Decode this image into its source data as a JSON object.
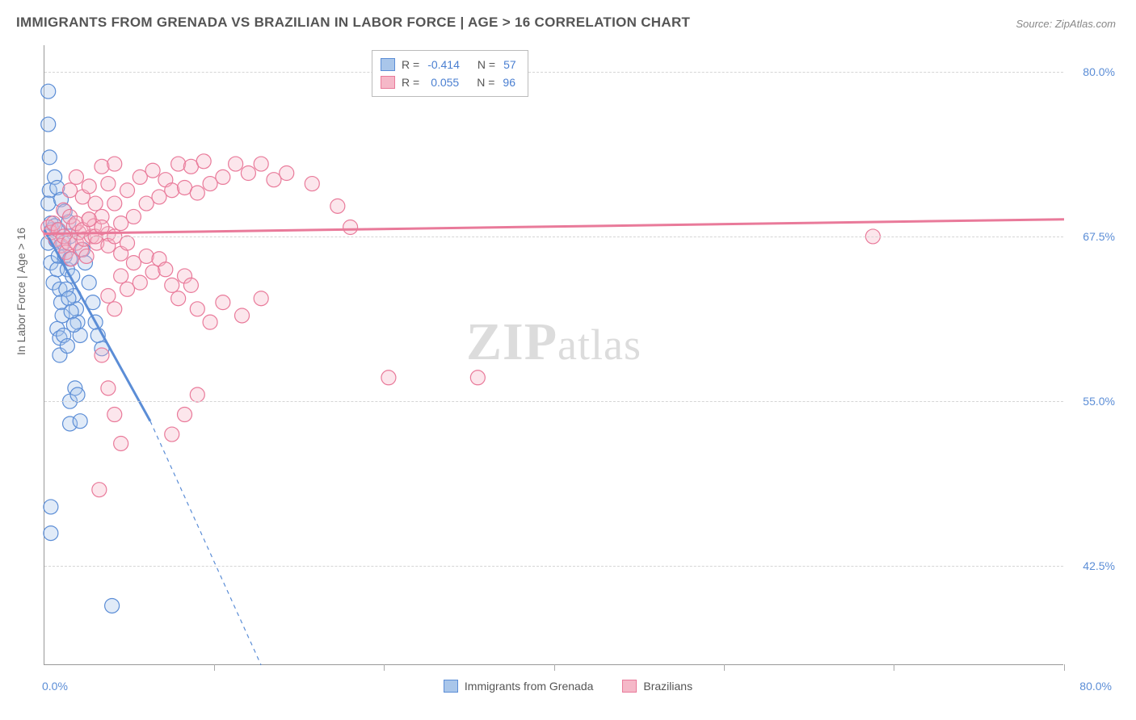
{
  "title": "IMMIGRANTS FROM GRENADA VS BRAZILIAN IN LABOR FORCE | AGE > 16 CORRELATION CHART",
  "source": "Source: ZipAtlas.com",
  "watermark_a": "ZIP",
  "watermark_b": "atlas",
  "y_axis_title": "In Labor Force | Age > 16",
  "x_min_label": "0.0%",
  "x_max_label": "80.0%",
  "chart": {
    "type": "scatter-correlation",
    "background_color": "#ffffff",
    "grid_color": "#d5d5d5",
    "axis_color": "#999999",
    "title_fontsize": 17,
    "tick_fontsize": 14,
    "tick_color": "#5b8dd6",
    "x_range": [
      0,
      80
    ],
    "y_range": [
      35,
      82
    ],
    "y_ticks": [
      42.5,
      55.0,
      67.5,
      80.0
    ],
    "y_tick_labels": [
      "42.5%",
      "55.0%",
      "67.5%",
      "80.0%"
    ],
    "x_tick_positions": [
      13.3,
      26.6,
      40.0,
      53.3,
      66.6,
      80.0
    ],
    "marker_radius": 9,
    "marker_opacity": 0.35,
    "trend_line_width": 3
  },
  "series": [
    {
      "name": "Immigrants from Grenada",
      "fill": "#a9c6ea",
      "stroke": "#5b8dd6",
      "R": "-0.414",
      "N": "57",
      "trend": {
        "x1": 0,
        "y1": 68.0,
        "x2": 8.3,
        "y2": 53.5,
        "dash_extend_x": 17.0,
        "dash_extend_y": 35.0
      },
      "points": [
        [
          0.3,
          78.5
        ],
        [
          0.3,
          76.0
        ],
        [
          0.4,
          73.5
        ],
        [
          0.4,
          71.0
        ],
        [
          0.3,
          70.0
        ],
        [
          0.5,
          68.5
        ],
        [
          0.6,
          68.0
        ],
        [
          0.3,
          67.0
        ],
        [
          0.5,
          65.5
        ],
        [
          0.7,
          64.0
        ],
        [
          0.8,
          68.3
        ],
        [
          0.9,
          67.2
        ],
        [
          1.0,
          68.0
        ],
        [
          1.1,
          66.0
        ],
        [
          1.0,
          65.0
        ],
        [
          1.2,
          63.5
        ],
        [
          1.3,
          62.5
        ],
        [
          1.4,
          61.5
        ],
        [
          1.0,
          60.5
        ],
        [
          1.2,
          59.8
        ],
        [
          1.5,
          67.0
        ],
        [
          1.6,
          66.0
        ],
        [
          1.8,
          65.0
        ],
        [
          2.0,
          67.5
        ],
        [
          2.0,
          65.8
        ],
        [
          2.2,
          64.5
        ],
        [
          2.3,
          63.0
        ],
        [
          2.5,
          62.0
        ],
        [
          2.6,
          61.0
        ],
        [
          2.8,
          60.0
        ],
        [
          3.0,
          66.5
        ],
        [
          3.2,
          65.5
        ],
        [
          3.5,
          64.0
        ],
        [
          3.8,
          62.5
        ],
        [
          4.0,
          61.0
        ],
        [
          4.2,
          60.0
        ],
        [
          4.5,
          59.0
        ],
        [
          2.0,
          55.0
        ],
        [
          2.0,
          53.3
        ],
        [
          2.8,
          53.5
        ],
        [
          0.5,
          47.0
        ],
        [
          0.5,
          45.0
        ],
        [
          1.2,
          58.5
        ],
        [
          1.5,
          60.0
        ],
        [
          1.8,
          59.2
        ],
        [
          5.3,
          39.5
        ],
        [
          2.4,
          56.0
        ],
        [
          2.6,
          55.5
        ],
        [
          1.7,
          63.5
        ],
        [
          1.9,
          62.8
        ],
        [
          2.1,
          61.8
        ],
        [
          2.3,
          60.8
        ],
        [
          0.8,
          72.0
        ],
        [
          1.0,
          71.2
        ],
        [
          1.3,
          70.3
        ],
        [
          1.6,
          69.4
        ],
        [
          1.9,
          68.6
        ]
      ]
    },
    {
      "name": "Brazilians",
      "fill": "#f5b8c8",
      "stroke": "#e97a9a",
      "R": "0.055",
      "N": "96",
      "trend": {
        "x1": 0,
        "y1": 67.7,
        "x2": 80,
        "y2": 68.8
      },
      "points": [
        [
          0.3,
          68.2
        ],
        [
          0.5,
          67.8
        ],
        [
          0.7,
          68.5
        ],
        [
          0.9,
          67.3
        ],
        [
          1.1,
          68.0
        ],
        [
          1.3,
          66.8
        ],
        [
          1.5,
          67.5
        ],
        [
          1.7,
          66.3
        ],
        [
          1.9,
          67.0
        ],
        [
          2.1,
          65.8
        ],
        [
          2.3,
          68.3
        ],
        [
          2.5,
          67.0
        ],
        [
          2.7,
          67.8
        ],
        [
          2.9,
          66.5
        ],
        [
          3.1,
          67.3
        ],
        [
          3.3,
          66.0
        ],
        [
          3.5,
          68.8
        ],
        [
          3.7,
          67.5
        ],
        [
          3.9,
          68.3
        ],
        [
          4.1,
          67.0
        ],
        [
          4.5,
          69.0
        ],
        [
          5.0,
          67.7
        ],
        [
          5.5,
          70.0
        ],
        [
          6.0,
          68.5
        ],
        [
          6.5,
          71.0
        ],
        [
          7.0,
          69.0
        ],
        [
          7.5,
          72.0
        ],
        [
          8.0,
          70.0
        ],
        [
          8.5,
          72.5
        ],
        [
          9.0,
          70.5
        ],
        [
          9.5,
          71.8
        ],
        [
          10.0,
          71.0
        ],
        [
          10.5,
          73.0
        ],
        [
          11.0,
          71.2
        ],
        [
          11.5,
          72.8
        ],
        [
          12.0,
          70.8
        ],
        [
          12.5,
          73.2
        ],
        [
          13.0,
          71.5
        ],
        [
          14.0,
          72.0
        ],
        [
          15.0,
          73.0
        ],
        [
          16.0,
          72.3
        ],
        [
          17.0,
          73.0
        ],
        [
          18.0,
          71.8
        ],
        [
          19.0,
          72.3
        ],
        [
          21.0,
          71.5
        ],
        [
          23.0,
          69.8
        ],
        [
          5.0,
          63.0
        ],
        [
          5.5,
          62.0
        ],
        [
          6.0,
          64.5
        ],
        [
          6.5,
          63.5
        ],
        [
          7.0,
          65.5
        ],
        [
          7.5,
          64.0
        ],
        [
          8.0,
          66.0
        ],
        [
          8.5,
          64.8
        ],
        [
          9.0,
          65.8
        ],
        [
          9.5,
          65.0
        ],
        [
          10.0,
          63.8
        ],
        [
          10.5,
          62.8
        ],
        [
          11.0,
          64.5
        ],
        [
          11.5,
          63.8
        ],
        [
          12.0,
          62.0
        ],
        [
          13.0,
          61.0
        ],
        [
          14.0,
          62.5
        ],
        [
          15.5,
          61.5
        ],
        [
          17.0,
          62.8
        ],
        [
          4.5,
          58.5
        ],
        [
          5.0,
          56.0
        ],
        [
          5.5,
          54.0
        ],
        [
          6.0,
          51.8
        ],
        [
          10.0,
          52.5
        ],
        [
          11.0,
          54.0
        ],
        [
          12.0,
          55.5
        ],
        [
          4.3,
          48.3
        ],
        [
          24.0,
          68.2
        ],
        [
          27.0,
          56.8
        ],
        [
          34.0,
          56.8
        ],
        [
          65.0,
          67.5
        ],
        [
          2.0,
          71.0
        ],
        [
          2.5,
          72.0
        ],
        [
          3.0,
          70.5
        ],
        [
          3.5,
          71.3
        ],
        [
          4.0,
          70.0
        ],
        [
          4.5,
          72.8
        ],
        [
          5.0,
          71.5
        ],
        [
          5.5,
          73.0
        ],
        [
          1.5,
          69.5
        ],
        [
          2.0,
          69.0
        ],
        [
          2.5,
          68.5
        ],
        [
          3.0,
          68.0
        ],
        [
          3.5,
          68.8
        ],
        [
          4.0,
          67.5
        ],
        [
          4.5,
          68.2
        ],
        [
          5.0,
          66.8
        ],
        [
          5.5,
          67.5
        ],
        [
          6.0,
          66.2
        ],
        [
          6.5,
          67.0
        ]
      ]
    }
  ]
}
